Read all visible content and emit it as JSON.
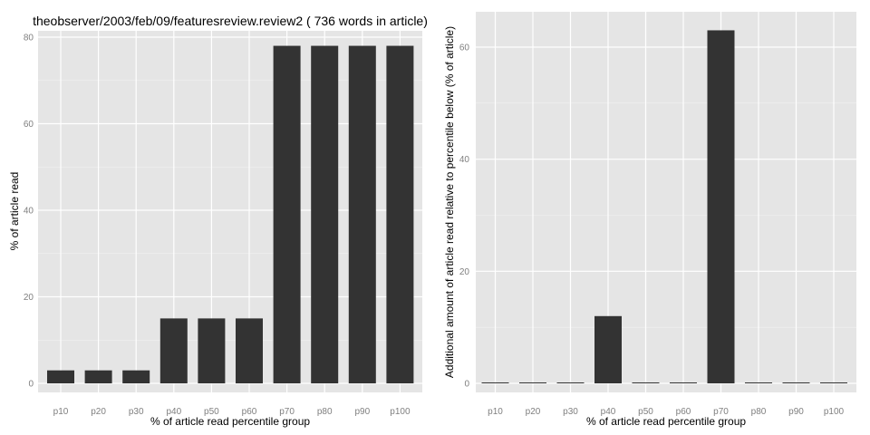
{
  "chart_data": [
    {
      "type": "bar",
      "title": "theobserver/2003/feb/09/featuresreview.review2 ( 736 words in article)",
      "xlabel": "% of article read percentile group",
      "ylabel": "% of article read",
      "categories": [
        "p10",
        "p20",
        "p30",
        "p40",
        "p50",
        "p60",
        "p70",
        "p80",
        "p90",
        "p100"
      ],
      "values": [
        3,
        3,
        3,
        15,
        15,
        15,
        78,
        78,
        78,
        78
      ],
      "ylim": [
        0,
        80
      ],
      "yticks": [
        0,
        20,
        40,
        60,
        80
      ],
      "grid": true,
      "bar_color": "#333333",
      "panel_bg": "#e5e5e5"
    },
    {
      "type": "bar",
      "title": "",
      "xlabel": "% of article read percentile group",
      "ylabel": "Additional amount of article read relative to percentile below (% of article)",
      "categories": [
        "p10",
        "p20",
        "p30",
        "p40",
        "p50",
        "p60",
        "p70",
        "p80",
        "p90",
        "p100"
      ],
      "values": [
        0,
        0,
        0,
        12,
        0,
        0,
        63,
        0,
        0,
        0
      ],
      "ylim": [
        0,
        65
      ],
      "yticks": [
        0,
        20,
        40,
        60
      ],
      "grid": true,
      "bar_color": "#333333",
      "panel_bg": "#e5e5e5"
    }
  ]
}
